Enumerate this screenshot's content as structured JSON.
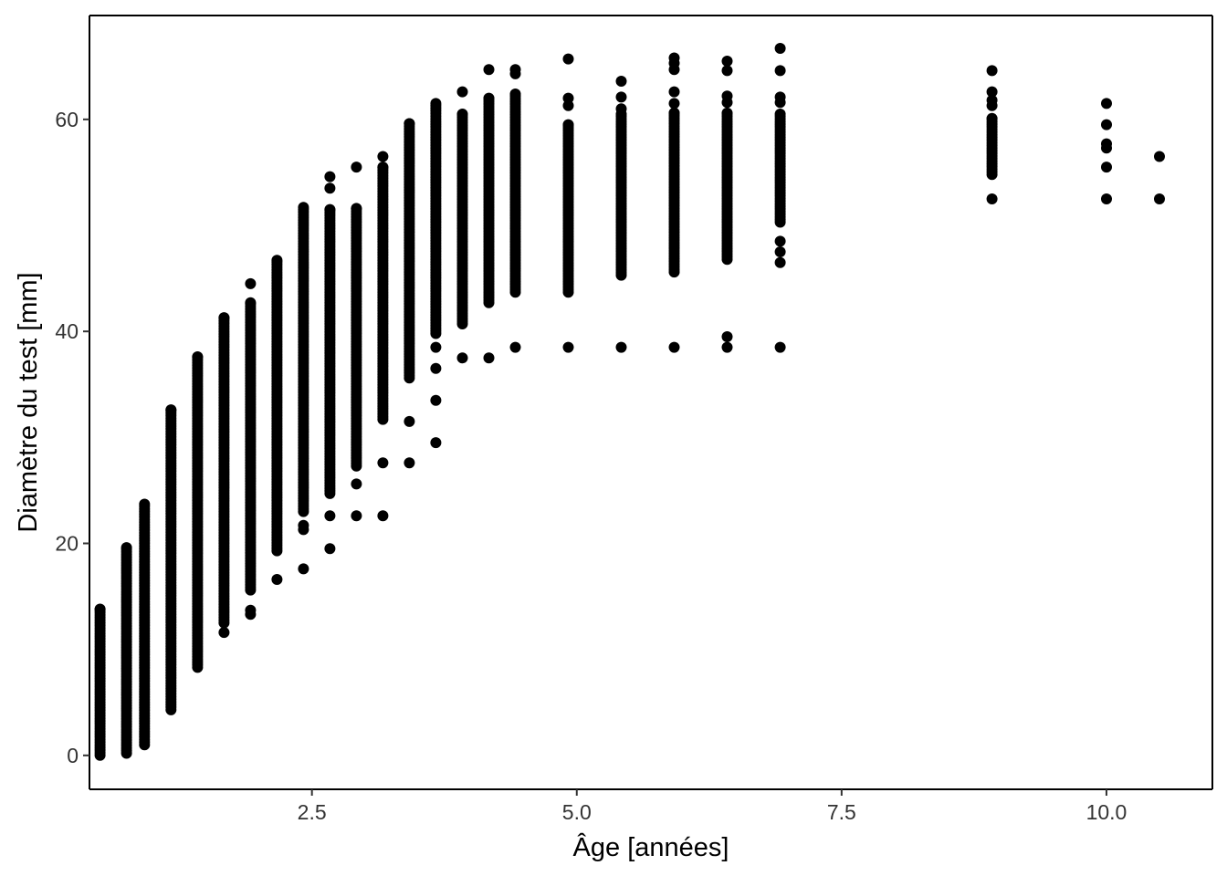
{
  "chart_data": {
    "type": "scatter",
    "title": "",
    "xlabel": "Âge  [années]",
    "ylabel": "Diamètre du test  [mm]",
    "xlim": [
      0.4,
      11.0
    ],
    "ylim": [
      -3.2,
      69.8
    ],
    "x_ticks": [
      2.5,
      5.0,
      7.5,
      10.0
    ],
    "x_tick_labels": [
      "2.5",
      "5.0",
      "7.5",
      "10.0"
    ],
    "y_ticks": [
      0,
      20,
      40,
      60
    ],
    "y_tick_labels": [
      "0",
      "20",
      "40",
      "60"
    ],
    "grid": false,
    "legend": "none",
    "point_color": "#000000",
    "columns": [
      {
        "x": 0.5,
        "range": [
          0.0,
          13.8
        ],
        "extra": []
      },
      {
        "x": 0.75,
        "range": [
          0.2,
          19.6
        ],
        "extra": []
      },
      {
        "x": 0.92,
        "range": [
          1.0,
          23.7
        ],
        "extra": []
      },
      {
        "x": 1.17,
        "range": [
          4.3,
          32.6
        ],
        "extra": []
      },
      {
        "x": 1.42,
        "range": [
          8.3,
          37.6
        ],
        "extra": []
      },
      {
        "x": 1.67,
        "range": [
          12.5,
          41.3
        ],
        "extra": [
          11.6
        ]
      },
      {
        "x": 1.92,
        "range": [
          15.6,
          42.7
        ],
        "extra": [
          44.5,
          13.7,
          13.3
        ]
      },
      {
        "x": 2.17,
        "range": [
          19.3,
          46.7
        ],
        "extra": [
          16.6
        ]
      },
      {
        "x": 2.42,
        "range": [
          23.0,
          51.7
        ],
        "extra": [
          21.7,
          21.3,
          17.6
        ]
      },
      {
        "x": 2.67,
        "range": [
          24.7,
          51.5
        ],
        "extra": [
          54.6,
          53.5,
          22.6,
          19.5
        ]
      },
      {
        "x": 2.92,
        "range": [
          27.3,
          51.6
        ],
        "extra": [
          55.5,
          25.6,
          22.6
        ]
      },
      {
        "x": 3.17,
        "range": [
          31.7,
          55.5
        ],
        "extra": [
          56.5,
          27.6,
          22.6
        ]
      },
      {
        "x": 3.42,
        "range": [
          35.6,
          59.6
        ],
        "extra": [
          31.5,
          27.6
        ]
      },
      {
        "x": 3.67,
        "range": [
          39.8,
          61.5
        ],
        "extra": [
          38.5,
          36.5,
          33.5,
          29.5
        ]
      },
      {
        "x": 3.92,
        "range": [
          40.7,
          60.5
        ],
        "extra": [
          62.6,
          37.5
        ]
      },
      {
        "x": 4.17,
        "range": [
          42.7,
          62.0
        ],
        "extra": [
          64.7,
          37.5
        ]
      },
      {
        "x": 4.42,
        "range": [
          43.7,
          62.4
        ],
        "extra": [
          64.7,
          64.3,
          38.5
        ]
      },
      {
        "x": 4.92,
        "range": [
          43.7,
          59.5
        ],
        "extra": [
          65.7,
          62.0,
          61.3,
          38.5
        ]
      },
      {
        "x": 5.42,
        "range": [
          45.3,
          60.5
        ],
        "extra": [
          63.6,
          62.1,
          61.0,
          38.5
        ]
      },
      {
        "x": 5.92,
        "range": [
          45.6,
          60.6
        ],
        "extra": [
          65.8,
          65.3,
          64.7,
          62.6,
          61.5,
          38.5
        ]
      },
      {
        "x": 6.42,
        "range": [
          46.8,
          60.6
        ],
        "extra": [
          65.5,
          64.6,
          62.2,
          61.6,
          39.5,
          38.5
        ]
      },
      {
        "x": 6.92,
        "range": [
          50.3,
          60.5
        ],
        "extra": [
          66.7,
          64.6,
          62.1,
          61.6,
          48.5,
          47.5,
          46.5,
          38.5
        ]
      },
      {
        "x": 8.92,
        "range": [
          54.8,
          60.1
        ],
        "extra": [
          64.6,
          62.6,
          61.8,
          61.3,
          52.5
        ]
      },
      {
        "x": 10.0,
        "range": null,
        "extra": [
          61.5,
          59.5,
          57.7,
          57.3,
          55.5,
          52.5
        ]
      },
      {
        "x": 10.5,
        "range": null,
        "extra": [
          56.5,
          52.5
        ]
      }
    ]
  }
}
